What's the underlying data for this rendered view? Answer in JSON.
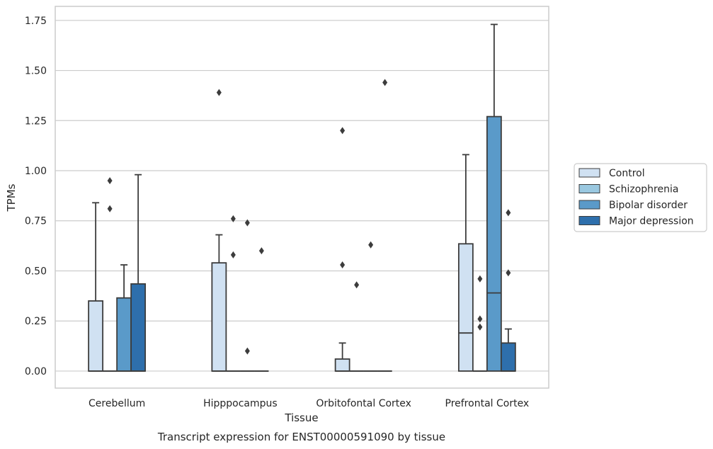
{
  "chart_data": {
    "type": "box",
    "xlabel": "Tissue",
    "ylabel": "TPMs",
    "caption": "Transcript expression for ENST00000591090 by tissue",
    "ylim": [
      -0.085,
      1.82
    ],
    "yticks": [
      "0.00",
      "0.25",
      "0.50",
      "0.75",
      "1.00",
      "1.25",
      "1.50",
      "1.75"
    ],
    "grid": true,
    "legend_position": "right",
    "categories": [
      "Cerebellum",
      "Hipppocampus",
      "Orbitofontal Cortex",
      "Prefrontal Cortex"
    ],
    "series": [
      {
        "name": "Control",
        "color": "#d0e1f2",
        "boxes": [
          {
            "q1": 0,
            "median": 0,
            "q3": 0.35,
            "whisker_low": 0,
            "whisker_high": 0.84,
            "outliers": []
          },
          {
            "q1": 0,
            "median": 0,
            "q3": 0.54,
            "whisker_low": 0,
            "whisker_high": 0.68,
            "outliers": [
              1.39
            ]
          },
          {
            "q1": 0,
            "median": 0,
            "q3": 0.06,
            "whisker_low": 0,
            "whisker_high": 0.14,
            "outliers": [
              1.2,
              0.53
            ]
          },
          {
            "q1": 0,
            "median": 0.19,
            "q3": 0.635,
            "whisker_low": 0,
            "whisker_high": 1.08,
            "outliers": []
          }
        ]
      },
      {
        "name": "Schizophrenia",
        "color": "#9ac8e0",
        "boxes": [
          {
            "q1": 0,
            "median": 0,
            "q3": 0,
            "whisker_low": 0,
            "whisker_high": 0,
            "outliers": [
              0.95,
              0.81
            ]
          },
          {
            "q1": 0,
            "median": 0,
            "q3": 0,
            "whisker_low": 0,
            "whisker_high": 0,
            "outliers": [
              0.76,
              0.58
            ]
          },
          {
            "q1": 0,
            "median": 0,
            "q3": 0,
            "whisker_low": 0,
            "whisker_high": 0,
            "outliers": [
              0.43
            ]
          },
          {
            "q1": 0,
            "median": 0,
            "q3": 0,
            "whisker_low": 0,
            "whisker_high": 0,
            "outliers": [
              0.46,
              0.26,
              0.22
            ]
          }
        ]
      },
      {
        "name": "Bipolar disorder",
        "color": "#5a9ac9",
        "boxes": [
          {
            "q1": 0,
            "median": 0,
            "q3": 0.365,
            "whisker_low": 0,
            "whisker_high": 0.53,
            "outliers": []
          },
          {
            "q1": 0,
            "median": 0,
            "q3": 0,
            "whisker_low": 0,
            "whisker_high": 0,
            "outliers": [
              0.74,
              0.1
            ]
          },
          {
            "q1": 0,
            "median": 0,
            "q3": 0,
            "whisker_low": 0,
            "whisker_high": 0,
            "outliers": [
              0.63
            ]
          },
          {
            "q1": 0,
            "median": 0.39,
            "q3": 1.27,
            "whisker_low": 0,
            "whisker_high": 1.73,
            "outliers": []
          }
        ]
      },
      {
        "name": "Major depression",
        "color": "#2e6fac",
        "boxes": [
          {
            "q1": 0,
            "median": 0,
            "q3": 0.435,
            "whisker_low": 0,
            "whisker_high": 0.98,
            "outliers": []
          },
          {
            "q1": 0,
            "median": 0,
            "q3": 0,
            "whisker_low": 0,
            "whisker_high": 0,
            "outliers": [
              0.6
            ]
          },
          {
            "q1": 0,
            "median": 0,
            "q3": 0,
            "whisker_low": 0,
            "whisker_high": 0,
            "outliers": [
              1.44
            ]
          },
          {
            "q1": 0,
            "median": 0,
            "q3": 0.14,
            "whisker_low": 0,
            "whisker_high": 0.21,
            "outliers": [
              0.79,
              0.49
            ]
          }
        ]
      }
    ]
  }
}
